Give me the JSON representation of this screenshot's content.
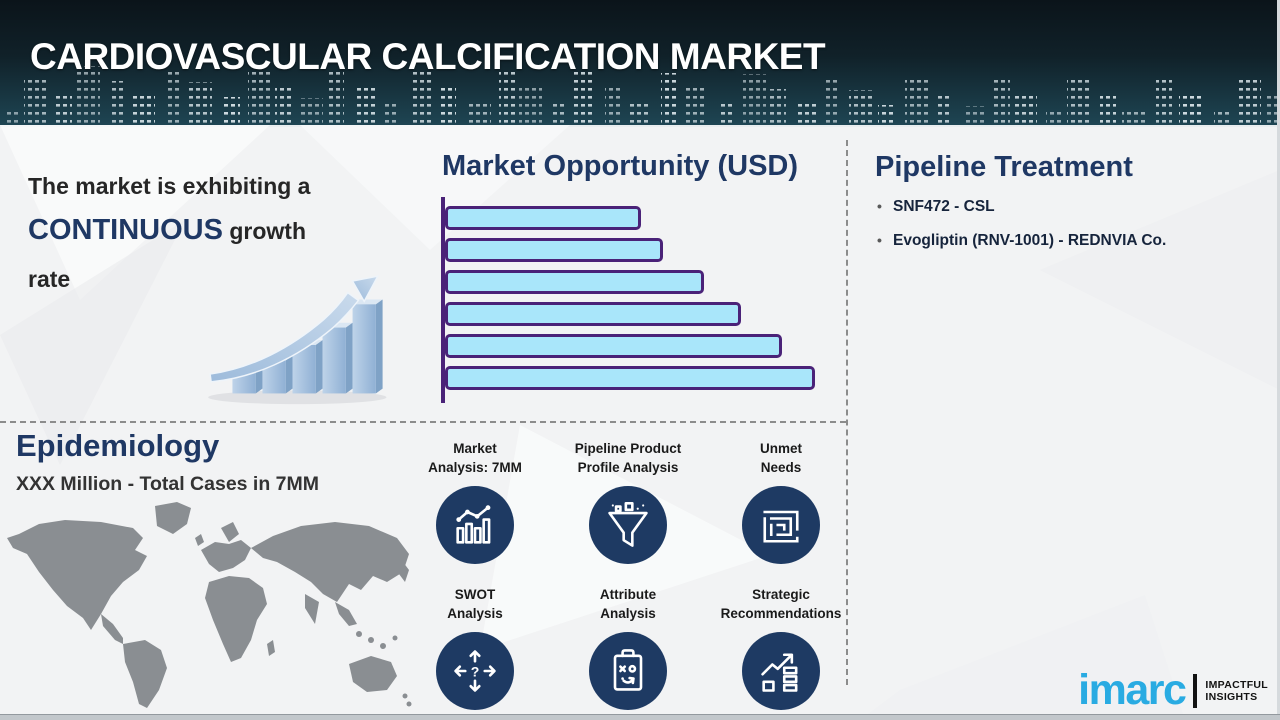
{
  "header": {
    "title": "CARDIOVASCULAR CALCIFICATION MARKET"
  },
  "growth_statement": {
    "line1": "The market is exhibiting a",
    "highlight": "CONTINUOUS",
    "after_highlight": " growth",
    "line3": "rate",
    "illustration": "3d-rising-bar-chart-with-arrow"
  },
  "market_opportunity": {
    "title": "Market Opportunity (USD)"
  },
  "chart_data": {
    "type": "bar",
    "orientation": "horizontal",
    "title": "Market Opportunity (USD)",
    "categories": [
      "",
      "",
      "",
      "",
      "",
      ""
    ],
    "values": [
      53,
      59,
      70,
      80,
      91,
      100
    ],
    "value_unit": "relative-percent-of-longest-bar",
    "xlabel": "",
    "ylabel": "",
    "axis_tick_labels_visible": false,
    "grid": false,
    "legend": false,
    "bar_fill": "#A9E6FA",
    "bar_border": "#4A2278"
  },
  "pipeline": {
    "title": "Pipeline Treatment",
    "items": [
      "SNF472 - CSL",
      "Evogliptin (RNV-1001) - REDNVIA Co."
    ]
  },
  "epidemiology": {
    "title": "Epidemiology",
    "subtitle": "XXX Million - Total Cases in 7MM",
    "illustration": "world-map"
  },
  "capabilities": [
    {
      "line1": "Market",
      "line2": "Analysis: 7MM",
      "icon": "bar-chart-trend-icon"
    },
    {
      "line1": "Pipeline Product",
      "line2": "Profile Analysis",
      "icon": "funnel-icon"
    },
    {
      "line1": "Unmet",
      "line2": "Needs",
      "icon": "maze-icon"
    },
    {
      "line1": "SWOT",
      "line2": "Analysis",
      "icon": "swot-arrows-icon"
    },
    {
      "line1": "Attribute",
      "line2": "Analysis",
      "icon": "clipboard-strategy-icon"
    },
    {
      "line1": "Strategic",
      "line2": "Recommendations",
      "icon": "growth-arrow-chart-icon"
    }
  ],
  "logo": {
    "brand": "imarc",
    "tagline_line1": "IMPACTFUL",
    "tagline_line2": "INSIGHTS"
  },
  "colors": {
    "heading_navy": "#1F3864",
    "body_text": "#262626",
    "icon_circle_navy": "#1E3A63",
    "bar_fill": "#A9E6FA",
    "bar_border": "#4A2278",
    "brand_blue": "#29ABE2",
    "header_teal_dark": "#0B141A",
    "header_teal_light": "#1E4553",
    "divider_gray": "#8C8C8C",
    "map_gray": "#8A8E92"
  }
}
